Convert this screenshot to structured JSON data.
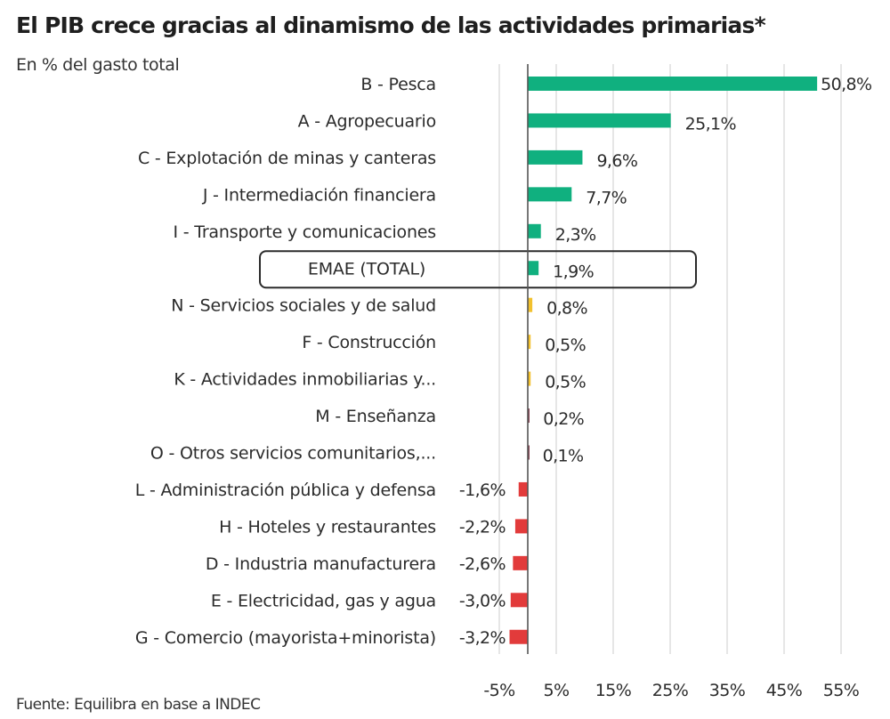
{
  "chart_data": {
    "type": "bar",
    "orientation": "horizontal",
    "title": "El PIB crece gracias al dinamismo de las actividades primarias*",
    "subtitle": "En % del gasto total",
    "source": "Fuente: Equilibra en base a INDEC",
    "xlabel": "",
    "ylabel": "",
    "xlim": [
      -5,
      55
    ],
    "xticks": [
      -5,
      5,
      15,
      25,
      35,
      45,
      55
    ],
    "xtick_labels": [
      "-5%",
      "5%",
      "15%",
      "25%",
      "35%",
      "45%",
      "55%"
    ],
    "grid": "vertical",
    "highlighted_category": "EMAE (TOTAL)",
    "colors": {
      "high_positive": "#10b07f",
      "low_positive": "#f2c12e",
      "tiny_positive": "#8a4a58",
      "negative": "#e23b3b",
      "gridline": "#e6e6e6",
      "axis": "#555555",
      "highlight_border": "#2b2b2b"
    },
    "categories": [
      "B - Pesca",
      "A -  Agropecuario",
      "C - Explotación de minas y canteras",
      "J - Intermediación financiera",
      "I - Transporte y comunicaciones",
      "EMAE (TOTAL)",
      "N - Servicios sociales y de salud",
      "F - Construcción",
      "K - Actividades inmobiliarias y...",
      "M - Enseñanza",
      "O - Otros servicios comunitarios,...",
      "L - Administración pública y defensa",
      "H - Hoteles y restaurantes",
      "D - Industria manufacturera",
      "E - Electricidad, gas y agua",
      "G - Comercio (mayorista+minorista)"
    ],
    "values": [
      50.8,
      25.1,
      9.6,
      7.7,
      2.3,
      1.9,
      0.8,
      0.5,
      0.5,
      0.2,
      0.1,
      -1.6,
      -2.2,
      -2.6,
      -3.0,
      -3.2
    ],
    "value_labels": [
      "50,8%",
      "25,1%",
      "9,6%",
      "7,7%",
      "2,3%",
      "1,9%",
      "0,8%",
      "0,5%",
      "0,5%",
      "0,2%",
      "0,1%",
      "-1,6%",
      "-2,2%",
      "-2,6%",
      "-3,0%",
      "-3,2%"
    ],
    "bar_color_groups": [
      "high_positive",
      "high_positive",
      "high_positive",
      "high_positive",
      "high_positive",
      "high_positive",
      "low_positive",
      "low_positive",
      "low_positive",
      "tiny_positive",
      "tiny_positive",
      "negative",
      "negative",
      "negative",
      "negative",
      "negative"
    ]
  }
}
